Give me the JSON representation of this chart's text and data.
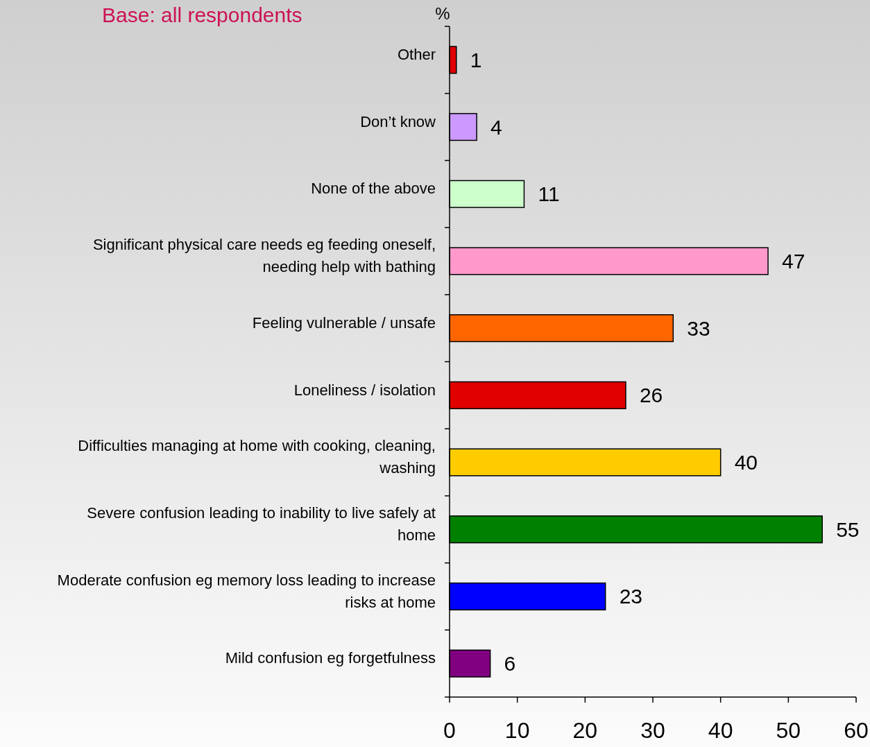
{
  "chart_data": {
    "type": "bar",
    "orientation": "horizontal",
    "subtitle": "Base: all respondents",
    "xlabel": "%",
    "categories": [
      "Other",
      "Don’t know",
      "None of the above",
      "Significant physical care needs eg feeding oneself, needing help with bathing",
      "Feeling vulnerable / unsafe",
      "Loneliness / isolation",
      "Difficulties managing at home with cooking, cleaning, washing",
      "Severe confusion leading to inability to live safely at home",
      "Moderate confusion eg memory loss leading to increase risks at home",
      "Mild confusion eg forgetfulness"
    ],
    "values": [
      1,
      4,
      11,
      47,
      33,
      26,
      40,
      55,
      23,
      6
    ],
    "colors": [
      "#e00000",
      "#cc99ff",
      "#ccffcc",
      "#ff99cc",
      "#ff6600",
      "#e00000",
      "#ffcc00",
      "#008000",
      "#0000ff",
      "#800080"
    ],
    "xlim": [
      0,
      60
    ],
    "xticks": [
      0,
      10,
      20,
      30,
      40,
      50,
      60
    ],
    "data_labels": true,
    "grid": false
  }
}
